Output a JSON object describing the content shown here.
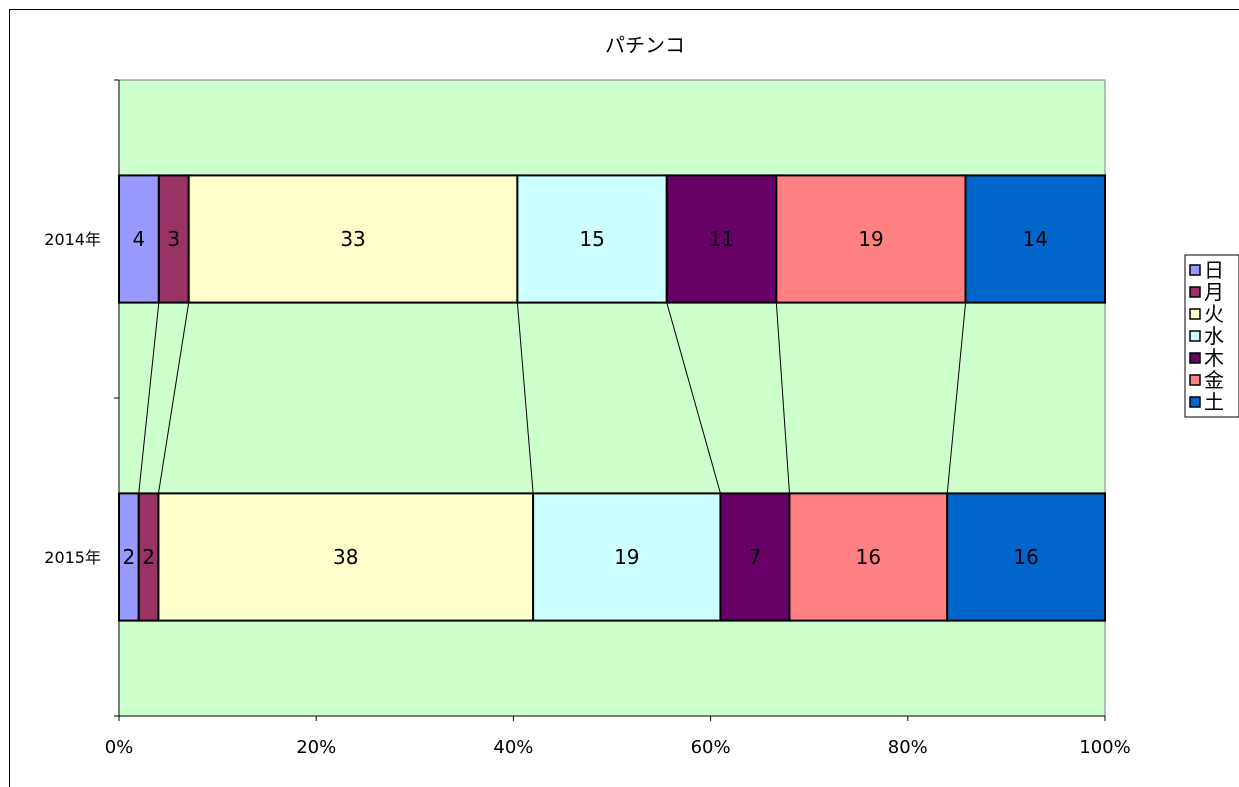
{
  "chart_data": {
    "type": "bar",
    "orientation": "horizontal",
    "stacked": "percent",
    "title": "パチンコ",
    "categories": [
      "2014年",
      "2015年"
    ],
    "series": [
      {
        "name": "日",
        "values": [
          4,
          2
        ],
        "color": "#9999ff"
      },
      {
        "name": "月",
        "values": [
          3,
          2
        ],
        "color": "#993366"
      },
      {
        "name": "火",
        "values": [
          33,
          38
        ],
        "color": "#ffffcc"
      },
      {
        "name": "水",
        "values": [
          15,
          19
        ],
        "color": "#ccffff"
      },
      {
        "name": "木",
        "values": [
          11,
          7
        ],
        "color": "#660066"
      },
      {
        "name": "金",
        "values": [
          19,
          16
        ],
        "color": "#ff8080"
      },
      {
        "name": "土",
        "values": [
          14,
          16
        ],
        "color": "#0066cc"
      }
    ],
    "xlim": [
      0,
      100
    ],
    "x_ticks": [
      "0%",
      "20%",
      "40%",
      "60%",
      "80%",
      "100%"
    ],
    "series_lines": true,
    "plot_background": "#ccffcc",
    "legend_position": "right",
    "grid": false
  }
}
